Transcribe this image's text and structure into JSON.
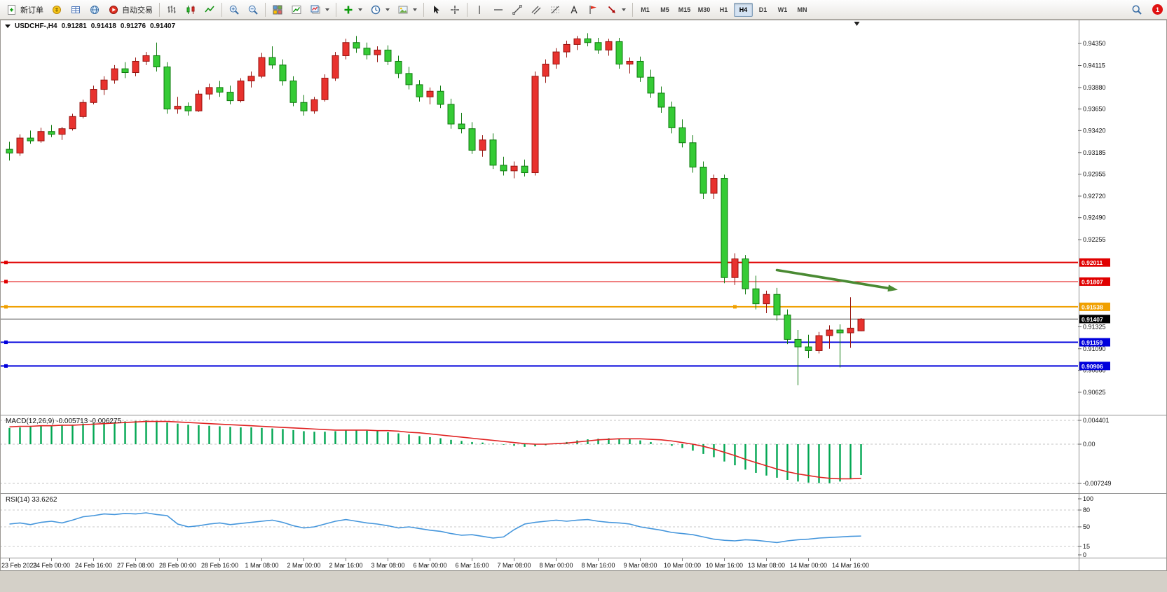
{
  "toolbar": {
    "new_order_label": "新订单",
    "auto_trading_label": "自动交易",
    "timeframes": [
      "M1",
      "M5",
      "M15",
      "M30",
      "H1",
      "H4",
      "D1",
      "W1",
      "MN"
    ],
    "active_timeframe": "H4",
    "notification_count": "1",
    "icons": [
      "new-order",
      "market-watch",
      "data-window",
      "navigator",
      "auto-trading",
      "bar-chart",
      "candlestick-chart",
      "line-chart",
      "zoom-in",
      "zoom-out",
      "tile-windows",
      "new-chart",
      "chart-profiles",
      "indicators",
      "periods",
      "templates",
      "cursor",
      "crosshair",
      "vertical-line",
      "horizontal-line",
      "trendline",
      "equidistant-channel",
      "fibonacci",
      "text",
      "label",
      "arrows",
      "search",
      "notifications"
    ]
  },
  "chart_header": {
    "symbol_period": "USDCHF-,H4",
    "open": "0.91281",
    "high": "0.91418",
    "low": "0.91276",
    "close": "0.91407"
  },
  "chart_data": {
    "type": "candlestick",
    "symbol": "USDCHF",
    "period": "H4",
    "colors": {
      "up": "#e8322e",
      "up_border": "#96120e",
      "down": "#35cb35",
      "down_border": "#0f7a0f",
      "macd_hist": "#00a651",
      "macd_signal": "#e02222",
      "rsi_line": "#4596dc",
      "bid_line": "#3c3c3c",
      "arrow": "#4a8a33",
      "hline_red": "#e00000",
      "hline_orange": "#f0a000",
      "hline_blue": "#0000dc"
    },
    "y_axis": {
      "min": 0.904,
      "max": 0.9459,
      "ticks": [
        {
          "v": 0.9435,
          "t": "0.94350"
        },
        {
          "v": 0.94115,
          "t": "0.94115"
        },
        {
          "v": 0.9388,
          "t": "0.93880"
        },
        {
          "v": 0.9365,
          "t": "0.93650"
        },
        {
          "v": 0.9342,
          "t": "0.93420"
        },
        {
          "v": 0.93185,
          "t": "0.93185"
        },
        {
          "v": 0.92955,
          "t": "0.92955"
        },
        {
          "v": 0.9272,
          "t": "0.92720"
        },
        {
          "v": 0.9249,
          "t": "0.92490"
        },
        {
          "v": 0.92255,
          "t": "0.92255"
        },
        {
          "v": 0.91325,
          "t": "0.91325"
        },
        {
          "v": 0.9109,
          "t": "0.91090"
        },
        {
          "v": 0.9086,
          "t": "0.90860"
        },
        {
          "v": 0.90625,
          "t": "0.90625"
        }
      ]
    },
    "x_labels": [
      {
        "i": 0,
        "t": "23 Feb 2023"
      },
      {
        "i": 4,
        "t": "24 Feb 00:00"
      },
      {
        "i": 8,
        "t": "24 Feb 16:00"
      },
      {
        "i": 12,
        "t": "27 Feb 08:00"
      },
      {
        "i": 16,
        "t": "28 Feb 00:00"
      },
      {
        "i": 20,
        "t": "28 Feb 16:00"
      },
      {
        "i": 24,
        "t": "1 Mar 08:00"
      },
      {
        "i": 28,
        "t": "2 Mar 00:00"
      },
      {
        "i": 32,
        "t": "2 Mar 16:00"
      },
      {
        "i": 36,
        "t": "3 Mar 08:00"
      },
      {
        "i": 40,
        "t": "6 Mar 00:00"
      },
      {
        "i": 44,
        "t": "6 Mar 16:00"
      },
      {
        "i": 48,
        "t": "7 Mar 08:00"
      },
      {
        "i": 52,
        "t": "8 Mar 00:00"
      },
      {
        "i": 56,
        "t": "8 Mar 16:00"
      },
      {
        "i": 60,
        "t": "9 Mar 08:00"
      },
      {
        "i": 64,
        "t": "10 Mar 00:00"
      },
      {
        "i": 68,
        "t": "10 Mar 16:00"
      },
      {
        "i": 72,
        "t": "13 Mar 08:00"
      },
      {
        "i": 76,
        "t": "14 Mar 00:00"
      },
      {
        "i": 80,
        "t": "14 Mar 16:00"
      }
    ],
    "candles": [
      [
        0.9322,
        0.933,
        0.931,
        0.9318
      ],
      [
        0.9318,
        0.9338,
        0.9315,
        0.9334
      ],
      [
        0.9334,
        0.9342,
        0.9328,
        0.9331
      ],
      [
        0.9331,
        0.9345,
        0.9329,
        0.9341
      ],
      [
        0.9341,
        0.9348,
        0.9335,
        0.9338
      ],
      [
        0.9338,
        0.9346,
        0.9332,
        0.9344
      ],
      [
        0.9344,
        0.936,
        0.9342,
        0.9357
      ],
      [
        0.9357,
        0.9375,
        0.9355,
        0.9372
      ],
      [
        0.9372,
        0.939,
        0.937,
        0.9386
      ],
      [
        0.9386,
        0.94,
        0.938,
        0.9396
      ],
      [
        0.9396,
        0.9412,
        0.9392,
        0.9408
      ],
      [
        0.9408,
        0.9415,
        0.9398,
        0.9404
      ],
      [
        0.9404,
        0.942,
        0.94,
        0.9416
      ],
      [
        0.9416,
        0.9426,
        0.9412,
        0.9422
      ],
      [
        0.9422,
        0.9436,
        0.9405,
        0.941
      ],
      [
        0.941,
        0.9415,
        0.936,
        0.9365
      ],
      [
        0.9365,
        0.9378,
        0.936,
        0.9368
      ],
      [
        0.9368,
        0.9372,
        0.9358,
        0.9363
      ],
      [
        0.9363,
        0.9385,
        0.9362,
        0.9381
      ],
      [
        0.9381,
        0.9392,
        0.9375,
        0.9388
      ],
      [
        0.9388,
        0.9395,
        0.9378,
        0.9383
      ],
      [
        0.9383,
        0.939,
        0.937,
        0.9374
      ],
      [
        0.9374,
        0.9398,
        0.9372,
        0.9395
      ],
      [
        0.9395,
        0.9405,
        0.9388,
        0.94
      ],
      [
        0.94,
        0.9425,
        0.9398,
        0.942
      ],
      [
        0.942,
        0.9432,
        0.9408,
        0.9412
      ],
      [
        0.9412,
        0.9418,
        0.939,
        0.9395
      ],
      [
        0.9395,
        0.94,
        0.9368,
        0.9372
      ],
      [
        0.9372,
        0.938,
        0.9358,
        0.9363
      ],
      [
        0.9363,
        0.9378,
        0.936,
        0.9375
      ],
      [
        0.9375,
        0.9402,
        0.9373,
        0.9398
      ],
      [
        0.9398,
        0.9426,
        0.9395,
        0.9422
      ],
      [
        0.9422,
        0.944,
        0.9418,
        0.9436
      ],
      [
        0.9436,
        0.9443,
        0.9425,
        0.943
      ],
      [
        0.943,
        0.9436,
        0.9418,
        0.9423
      ],
      [
        0.9423,
        0.9432,
        0.9415,
        0.9428
      ],
      [
        0.9428,
        0.9433,
        0.9412,
        0.9416
      ],
      [
        0.9416,
        0.9422,
        0.9398,
        0.9403
      ],
      [
        0.9403,
        0.941,
        0.9386,
        0.9391
      ],
      [
        0.9391,
        0.9396,
        0.9373,
        0.9378
      ],
      [
        0.9378,
        0.9388,
        0.937,
        0.9384
      ],
      [
        0.9384,
        0.939,
        0.9366,
        0.937
      ],
      [
        0.937,
        0.9376,
        0.9344,
        0.9349
      ],
      [
        0.9349,
        0.9361,
        0.9339,
        0.9344
      ],
      [
        0.9344,
        0.9351,
        0.9317,
        0.9321
      ],
      [
        0.9321,
        0.9337,
        0.9314,
        0.9332
      ],
      [
        0.9332,
        0.9339,
        0.9301,
        0.9305
      ],
      [
        0.9305,
        0.9314,
        0.9294,
        0.9299
      ],
      [
        0.9299,
        0.9309,
        0.9291,
        0.9304
      ],
      [
        0.9304,
        0.9311,
        0.9293,
        0.9297
      ],
      [
        0.9297,
        0.9405,
        0.9294,
        0.94
      ],
      [
        0.94,
        0.9418,
        0.9393,
        0.9413
      ],
      [
        0.9413,
        0.943,
        0.9408,
        0.9426
      ],
      [
        0.9426,
        0.9438,
        0.942,
        0.9434
      ],
      [
        0.9434,
        0.9443,
        0.9428,
        0.944
      ],
      [
        0.944,
        0.9446,
        0.9432,
        0.9436
      ],
      [
        0.9436,
        0.9441,
        0.9424,
        0.9428
      ],
      [
        0.9428,
        0.944,
        0.9422,
        0.9437
      ],
      [
        0.9437,
        0.9441,
        0.9408,
        0.9413
      ],
      [
        0.9413,
        0.942,
        0.9403,
        0.9416
      ],
      [
        0.9416,
        0.9421,
        0.9394,
        0.9399
      ],
      [
        0.9399,
        0.9407,
        0.9377,
        0.9382
      ],
      [
        0.9382,
        0.9389,
        0.9361,
        0.9367
      ],
      [
        0.9367,
        0.9373,
        0.9339,
        0.9345
      ],
      [
        0.9345,
        0.9354,
        0.9324,
        0.9329
      ],
      [
        0.9329,
        0.9337,
        0.9297,
        0.9303
      ],
      [
        0.9303,
        0.9309,
        0.9269,
        0.9275
      ],
      [
        0.9275,
        0.9295,
        0.9269,
        0.9291
      ],
      [
        0.9291,
        0.9295,
        0.9179,
        0.9185
      ],
      [
        0.9185,
        0.9211,
        0.9177,
        0.9205
      ],
      [
        0.9205,
        0.9209,
        0.9167,
        0.9173
      ],
      [
        0.9173,
        0.9187,
        0.9151,
        0.9157
      ],
      [
        0.9157,
        0.9171,
        0.9147,
        0.9167
      ],
      [
        0.9167,
        0.9174,
        0.9139,
        0.9145
      ],
      [
        0.9145,
        0.9151,
        0.9114,
        0.9119
      ],
      [
        0.9119,
        0.9129,
        0.907,
        0.9111
      ],
      [
        0.9111,
        0.9124,
        0.9099,
        0.9107
      ],
      [
        0.9107,
        0.9127,
        0.9104,
        0.9123
      ],
      [
        0.9123,
        0.9134,
        0.9109,
        0.9129
      ],
      [
        0.9129,
        0.9135,
        0.9089,
        0.9126
      ],
      [
        0.9126,
        0.9164,
        0.911,
        0.9131
      ],
      [
        0.91281,
        0.91418,
        0.91276,
        0.91407
      ]
    ],
    "hlines": [
      {
        "price": 0.92011,
        "label": "0.92011",
        "color": "#e00000",
        "width": 2,
        "handles": []
      },
      {
        "price": 0.91807,
        "label": "0.91807",
        "color": "#e00000",
        "width": 1,
        "handles": []
      },
      {
        "price": 0.91538,
        "label": "0.91538",
        "color": "#f0a000",
        "width": 2,
        "handles": [
          69,
          73
        ]
      },
      {
        "price": 0.91159,
        "label": "0.91159",
        "color": "#0000dc",
        "width": 2,
        "handles": []
      },
      {
        "price": 0.90906,
        "label": "0.90906",
        "color": "#0000dc",
        "width": 2,
        "handles": []
      }
    ],
    "bid": {
      "price": 0.91407,
      "label": "0.91407"
    },
    "arrow_annotation": {
      "from_index": 73,
      "from_price": 0.9193,
      "to_index": 84.5,
      "to_price": 0.9172
    },
    "macd": {
      "label": "MACD(12,26,9) -0.005713 -0.006275",
      "main_value": -0.005713,
      "signal_value": -0.006275,
      "axis": [
        {
          "v": 0.004401,
          "t": "0.004401"
        },
        {
          "v": 0,
          "t": "0.00"
        },
        {
          "v": -0.007249,
          "t": "-0.007249"
        }
      ],
      "hist": [
        0.003,
        0.0031,
        0.0032,
        0.0033,
        0.0034,
        0.0035,
        0.0036,
        0.0038,
        0.0039,
        0.004,
        0.0041,
        0.0042,
        0.0043,
        0.0044,
        0.0043,
        0.004,
        0.0038,
        0.0036,
        0.0035,
        0.0034,
        0.0033,
        0.0032,
        0.0031,
        0.0031,
        0.003,
        0.0029,
        0.0028,
        0.0026,
        0.0024,
        0.0023,
        0.0023,
        0.0024,
        0.0026,
        0.0026,
        0.0025,
        0.0024,
        0.0022,
        0.002,
        0.0018,
        0.0015,
        0.0013,
        0.0011,
        0.0008,
        0.0006,
        0.0004,
        0.0003,
        0.0001,
        -0.0001,
        -0.0003,
        -0.0005,
        -0.0004,
        -0.0002,
        0.0001,
        0.0004,
        0.0007,
        0.0009,
        0.001,
        0.0011,
        0.001,
        0.0009,
        0.0007,
        0.0004,
        0.0001,
        -0.0003,
        -0.0007,
        -0.0012,
        -0.0018,
        -0.0024,
        -0.0032,
        -0.0039,
        -0.0047,
        -0.0053,
        -0.0058,
        -0.0062,
        -0.0066,
        -0.0069,
        -0.0071,
        -0.0072,
        -0.0072,
        -0.0069,
        -0.0064,
        -0.0057
      ],
      "signal": [
        0.0032,
        0.0033,
        0.0033,
        0.0034,
        0.0034,
        0.0035,
        0.0035,
        0.0036,
        0.0037,
        0.0038,
        0.0039,
        0.004,
        0.0041,
        0.0042,
        0.0042,
        0.0042,
        0.0041,
        0.004,
        0.0039,
        0.0038,
        0.0037,
        0.0036,
        0.0035,
        0.0034,
        0.0033,
        0.0032,
        0.0031,
        0.003,
        0.0029,
        0.0028,
        0.0027,
        0.0026,
        0.0026,
        0.0026,
        0.0026,
        0.0025,
        0.0025,
        0.0024,
        0.0022,
        0.0021,
        0.0019,
        0.0017,
        0.0015,
        0.0013,
        0.0011,
        0.0009,
        0.0007,
        0.0005,
        0.0003,
        0.0001,
        0.0,
        0.0,
        0.0001,
        0.0002,
        0.0004,
        0.0006,
        0.0008,
        0.0009,
        0.001,
        0.001,
        0.001,
        0.0009,
        0.0008,
        0.0006,
        0.0003,
        0.0,
        -0.0004,
        -0.0009,
        -0.0015,
        -0.0021,
        -0.0028,
        -0.0034,
        -0.004,
        -0.0046,
        -0.0051,
        -0.0055,
        -0.0058,
        -0.0061,
        -0.0063,
        -0.0064,
        -0.0064,
        -0.0063
      ]
    },
    "rsi": {
      "label": "RSI(14) 33.6262",
      "current_value": 33.6262,
      "levels": [
        {
          "v": 100,
          "t": "100"
        },
        {
          "v": 80,
          "t": "80"
        },
        {
          "v": 50,
          "t": "50"
        },
        {
          "v": 15,
          "t": "15"
        },
        {
          "v": 0,
          "t": "0"
        }
      ],
      "dashed_levels": [
        80,
        50,
        15
      ],
      "values": [
        55,
        57,
        54,
        58,
        60,
        57,
        62,
        68,
        70,
        73,
        72,
        74,
        73,
        75,
        72,
        70,
        55,
        50,
        52,
        55,
        57,
        54,
        56,
        58,
        60,
        62,
        58,
        52,
        48,
        50,
        55,
        60,
        63,
        60,
        57,
        55,
        52,
        48,
        50,
        47,
        44,
        42,
        38,
        35,
        36,
        33,
        30,
        32,
        45,
        55,
        58,
        60,
        62,
        60,
        62,
        63,
        60,
        58,
        57,
        55,
        50,
        47,
        44,
        40,
        38,
        36,
        32,
        28,
        26,
        25,
        27,
        26,
        24,
        22,
        25,
        27,
        28,
        30,
        31,
        32,
        33,
        33.6
      ]
    }
  }
}
